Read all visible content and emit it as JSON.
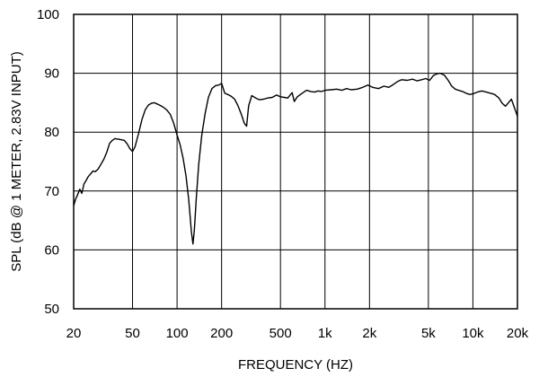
{
  "chart_data": {
    "type": "line",
    "xlabel": "FREQUENCY  (HZ)",
    "ylabel": "SPL (dB @ 1 METER, 2.83V INPUT)",
    "x_scale": "log",
    "xlim": [
      20,
      20000
    ],
    "ylim": [
      50,
      100
    ],
    "grid": true,
    "x_ticks": [
      {
        "value": 20,
        "label": "20"
      },
      {
        "value": 50,
        "label": "50"
      },
      {
        "value": 100,
        "label": "100"
      },
      {
        "value": 200,
        "label": "200"
      },
      {
        "value": 500,
        "label": "500"
      },
      {
        "value": 1000,
        "label": "1k"
      },
      {
        "value": 2000,
        "label": "2k"
      },
      {
        "value": 5000,
        "label": "5k"
      },
      {
        "value": 10000,
        "label": "10k"
      },
      {
        "value": 20000,
        "label": "20k"
      }
    ],
    "y_ticks": [
      {
        "value": 50,
        "label": "50"
      },
      {
        "value": 60,
        "label": "60"
      },
      {
        "value": 70,
        "label": "70"
      },
      {
        "value": 80,
        "label": "80"
      },
      {
        "value": 90,
        "label": "90"
      },
      {
        "value": 100,
        "label": "100"
      }
    ],
    "series": [
      {
        "points": [
          [
            20,
            67.5
          ],
          [
            20.6,
            68.6
          ],
          [
            21.2,
            69.3
          ],
          [
            22,
            70.3
          ],
          [
            22.7,
            69.6
          ],
          [
            23.5,
            71.2
          ],
          [
            24.3,
            71.8
          ],
          [
            25,
            72.4
          ],
          [
            26,
            72.9
          ],
          [
            27,
            73.4
          ],
          [
            28,
            73.3
          ],
          [
            29.2,
            73.7
          ],
          [
            30.5,
            74.5
          ],
          [
            32,
            75.4
          ],
          [
            33.5,
            76.6
          ],
          [
            35,
            78.1
          ],
          [
            36.5,
            78.6
          ],
          [
            38,
            78.9
          ],
          [
            40,
            78.8
          ],
          [
            42,
            78.7
          ],
          [
            44,
            78.6
          ],
          [
            46,
            78.0
          ],
          [
            48,
            77.2
          ],
          [
            50,
            76.7
          ],
          [
            52,
            77.5
          ],
          [
            55,
            79.8
          ],
          [
            58,
            82.2
          ],
          [
            61,
            83.8
          ],
          [
            64,
            84.6
          ],
          [
            67,
            84.9
          ],
          [
            70,
            85.0
          ],
          [
            73,
            84.8
          ],
          [
            76,
            84.6
          ],
          [
            80,
            84.3
          ],
          [
            85,
            83.8
          ],
          [
            90,
            83.0
          ],
          [
            95,
            81.5
          ],
          [
            100,
            79.5
          ],
          [
            105,
            77.8
          ],
          [
            110,
            75.5
          ],
          [
            115,
            72.5
          ],
          [
            120,
            68.5
          ],
          [
            125,
            63.0
          ],
          [
            128,
            61.0
          ],
          [
            131,
            63.5
          ],
          [
            135,
            69.0
          ],
          [
            140,
            74.5
          ],
          [
            147,
            79.5
          ],
          [
            155,
            83.2
          ],
          [
            163,
            85.9
          ],
          [
            172,
            87.4
          ],
          [
            182,
            87.9
          ],
          [
            192,
            88.0
          ],
          [
            200,
            88.3
          ],
          [
            210,
            86.6
          ],
          [
            220,
            86.4
          ],
          [
            232,
            86.1
          ],
          [
            245,
            85.6
          ],
          [
            258,
            84.5
          ],
          [
            272,
            83.0
          ],
          [
            285,
            81.5
          ],
          [
            295,
            81.0
          ],
          [
            305,
            84.5
          ],
          [
            320,
            86.2
          ],
          [
            340,
            85.8
          ],
          [
            360,
            85.5
          ],
          [
            385,
            85.6
          ],
          [
            410,
            85.8
          ],
          [
            440,
            85.9
          ],
          [
            470,
            86.3
          ],
          [
            500,
            86.0
          ],
          [
            530,
            85.9
          ],
          [
            560,
            85.8
          ],
          [
            600,
            86.7
          ],
          [
            620,
            85.2
          ],
          [
            650,
            86.0
          ],
          [
            700,
            86.6
          ],
          [
            750,
            87.1
          ],
          [
            800,
            86.9
          ],
          [
            850,
            86.8
          ],
          [
            900,
            87.0
          ],
          [
            950,
            86.9
          ],
          [
            1000,
            87.1
          ],
          [
            1100,
            87.2
          ],
          [
            1200,
            87.3
          ],
          [
            1300,
            87.1
          ],
          [
            1400,
            87.4
          ],
          [
            1500,
            87.2
          ],
          [
            1650,
            87.3
          ],
          [
            1800,
            87.6
          ],
          [
            1950,
            88.0
          ],
          [
            2100,
            87.6
          ],
          [
            2300,
            87.4
          ],
          [
            2500,
            87.8
          ],
          [
            2700,
            87.6
          ],
          [
            2900,
            88.1
          ],
          [
            3100,
            88.6
          ],
          [
            3300,
            88.9
          ],
          [
            3600,
            88.8
          ],
          [
            3900,
            89.0
          ],
          [
            4200,
            88.7
          ],
          [
            4500,
            88.9
          ],
          [
            4800,
            89.1
          ],
          [
            5100,
            88.8
          ],
          [
            5400,
            89.6
          ],
          [
            5700,
            89.9
          ],
          [
            6000,
            90.0
          ],
          [
            6400,
            89.7
          ],
          [
            6800,
            88.8
          ],
          [
            7200,
            87.8
          ],
          [
            7600,
            87.3
          ],
          [
            8000,
            87.1
          ],
          [
            8500,
            86.9
          ],
          [
            9000,
            86.6
          ],
          [
            9500,
            86.4
          ],
          [
            10000,
            86.5
          ],
          [
            10700,
            86.8
          ],
          [
            11500,
            87.0
          ],
          [
            12300,
            86.8
          ],
          [
            13200,
            86.6
          ],
          [
            14000,
            86.4
          ],
          [
            15000,
            85.8
          ],
          [
            15800,
            84.9
          ],
          [
            16600,
            84.4
          ],
          [
            17400,
            85.0
          ],
          [
            18200,
            85.6
          ],
          [
            19000,
            84.3
          ],
          [
            20000,
            82.7
          ]
        ]
      }
    ]
  }
}
